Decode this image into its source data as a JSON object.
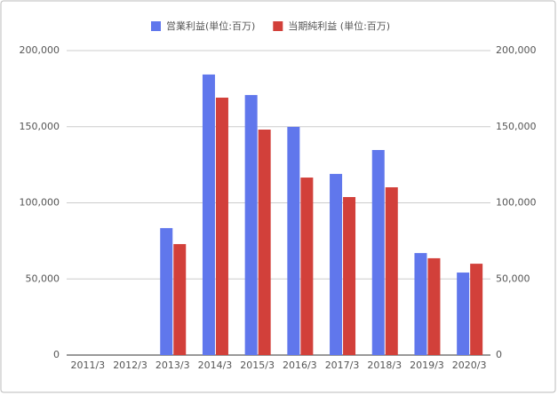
{
  "chart_data": {
    "type": "bar",
    "categories": [
      "2011/3",
      "2012/3",
      "2013/3",
      "2014/3",
      "2015/3",
      "2016/3",
      "2017/3",
      "2018/3",
      "2019/3",
      "2020/3"
    ],
    "series": [
      {
        "name": "営業利益(単位:百万)",
        "color": "#6077ec",
        "values": [
          null,
          null,
          83400,
          184300,
          170800,
          149900,
          119000,
          134700,
          67000,
          54200
        ]
      },
      {
        "name": "当期純利益 (単位:百万)",
        "color": "#d2403a",
        "values": [
          null,
          null,
          72900,
          169100,
          148100,
          116600,
          103800,
          110200,
          63600,
          60000
        ]
      }
    ],
    "ylim": [
      0,
      200000
    ],
    "yticks": [
      0,
      {
        "value": 50000,
        "label": "50,000"
      },
      {
        "value": 100000,
        "label": "100,000"
      },
      {
        "value": 150000,
        "label": "150,000"
      },
      {
        "value": 200000,
        "label": "200,000"
      }
    ],
    "y2lim": [
      0,
      200000
    ],
    "y2ticks": [
      0,
      {
        "value": 50000,
        "label": "50,000"
      },
      {
        "value": 100000,
        "label": "100,000"
      },
      {
        "value": 150000,
        "label": "150,000"
      },
      {
        "value": 200000,
        "label": "200,000"
      }
    ],
    "grid": true,
    "legend": "top"
  }
}
